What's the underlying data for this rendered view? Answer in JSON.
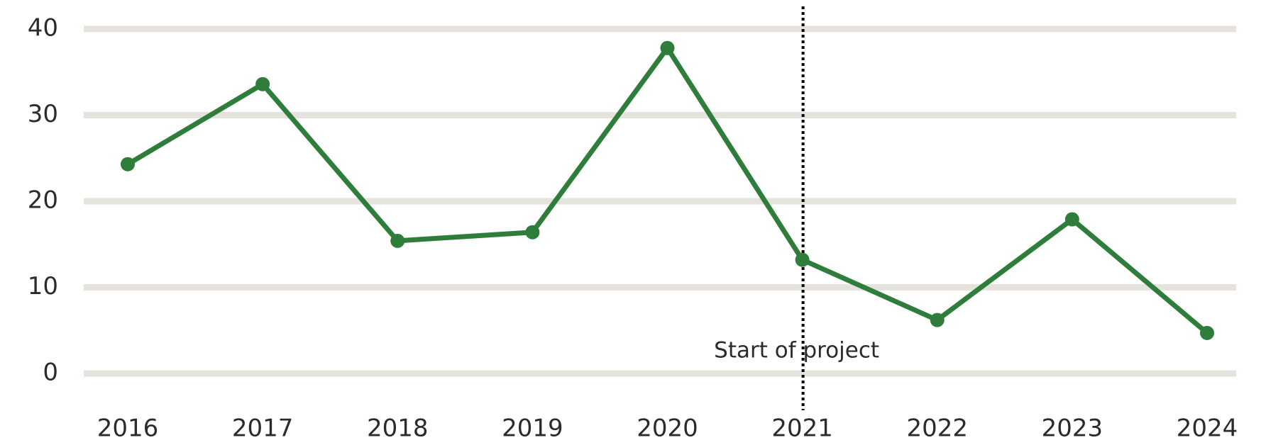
{
  "chart_data": {
    "type": "line",
    "categories": [
      "2016",
      "2017",
      "2018",
      "2019",
      "2020",
      "2021",
      "2022",
      "2023",
      "2024"
    ],
    "series": [
      {
        "color": "#2e7d3a",
        "values": [
          24.3,
          33.6,
          15.4,
          16.4,
          37.8,
          13.2,
          6.2,
          17.9,
          4.7
        ]
      }
    ],
    "ylim": [
      0,
      40
    ],
    "yticks": [
      0,
      10,
      20,
      30,
      40
    ],
    "grid": true,
    "annotation": {
      "text": "Start of project",
      "x": "2021"
    }
  }
}
